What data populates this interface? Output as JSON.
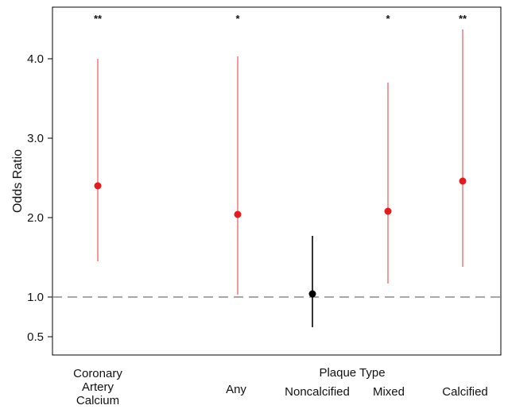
{
  "chart_data": {
    "type": "scatter",
    "title": "",
    "xlabel": "",
    "ylabel": "Odds Ratio",
    "ylim": [
      0.0,
      4.7
    ],
    "yticks": [
      {
        "value": 0.5,
        "label": "0.5"
      },
      {
        "value": 1.0,
        "label": "1.0"
      },
      {
        "value": 2.0,
        "label": "2.0"
      },
      {
        "value": 3.0,
        "label": "3.0"
      },
      {
        "value": 4.0,
        "label": "4.0"
      }
    ],
    "reference_line": 1.0,
    "grid": false,
    "group_label": "Plaque Type",
    "points": [
      {
        "label_lines": [
          "Coronary",
          "Artery",
          "Calcium"
        ],
        "or": 2.4,
        "ci_low": 1.45,
        "ci_high": 4.0,
        "significance": "**",
        "color": "#e41a1c",
        "ci_color": "#f08080"
      },
      {
        "label_lines": [
          "Any"
        ],
        "or": 2.04,
        "ci_low": 1.03,
        "ci_high": 4.03,
        "significance": "*",
        "color": "#e41a1c",
        "ci_color": "#f08080"
      },
      {
        "label_lines": [
          "Noncalcified"
        ],
        "or": 1.04,
        "ci_low": 0.62,
        "ci_high": 1.77,
        "significance": "",
        "color": "#000000",
        "ci_color": "#000000"
      },
      {
        "label_lines": [
          "Mixed"
        ],
        "or": 2.08,
        "ci_low": 1.17,
        "ci_high": 3.7,
        "significance": "*",
        "color": "#e41a1c",
        "ci_color": "#f08080"
      },
      {
        "label_lines": [
          "Calcified"
        ],
        "or": 2.46,
        "ci_low": 1.38,
        "ci_high": 4.37,
        "significance": "**",
        "color": "#e41a1c",
        "ci_color": "#f08080"
      }
    ]
  }
}
